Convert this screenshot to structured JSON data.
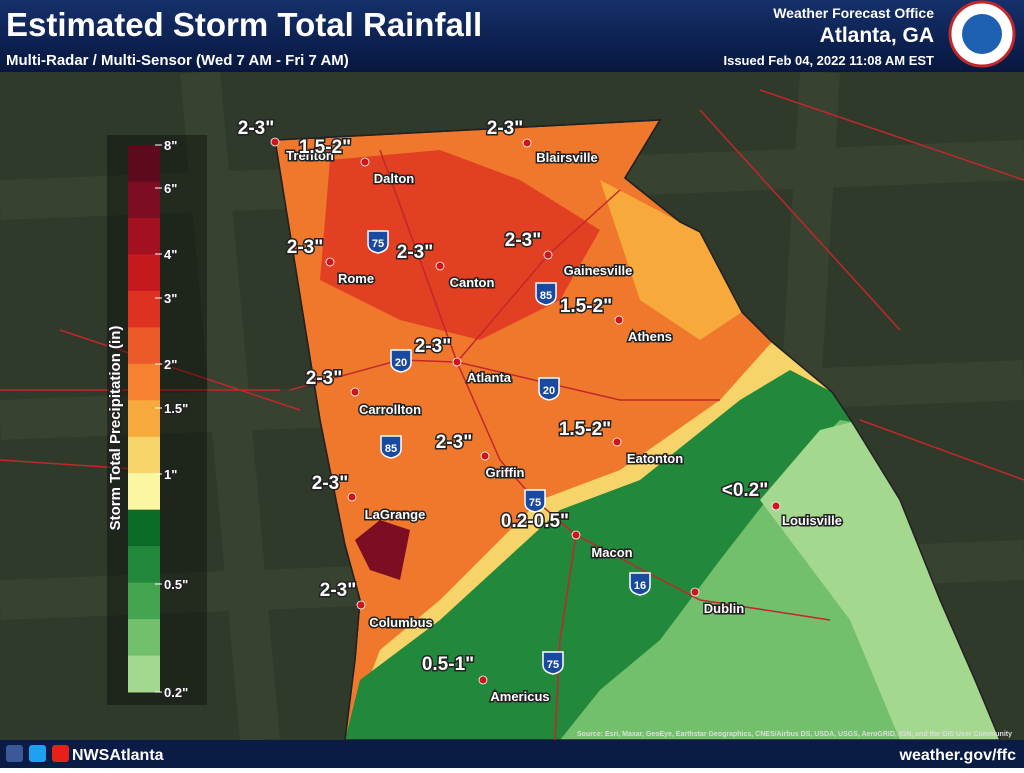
{
  "header": {
    "title": "Estimated Storm Total Rainfall",
    "subtitle": "Multi-Radar / Multi-Sensor (Wed 7 AM - Fri 7 AM)",
    "office": "Weather Forecast Office",
    "office_location": "Atlanta, GA",
    "issued": "Issued Feb 04, 2022 11:08 AM EST"
  },
  "legend": {
    "title": "Storm Total Precipitation (in)",
    "labels": [
      "8\"",
      "6\"",
      "4\"",
      "3\"",
      "2\"",
      "1.5\"",
      "1\"",
      "0.5\"",
      "0.2\""
    ],
    "colors": [
      "#5c0a1c",
      "#7c0d22",
      "#a3101f",
      "#c6191d",
      "#dd3222",
      "#ec5a2a",
      "#f4822f",
      "#f8a93c",
      "#f7d46a",
      "#fbf6a2",
      "#0b6a26",
      "#22883b",
      "#45a44f",
      "#72bf6c",
      "#a3d88e"
    ]
  },
  "cities": [
    "Trenton",
    "Dalton",
    "Blairsville",
    "Rome",
    "Canton",
    "Gainesville",
    "Athens",
    "Atlanta",
    "Carrollton",
    "Eatonton",
    "Griffin",
    "LaGrange",
    "Louisville",
    "Macon",
    "Dublin",
    "Columbus",
    "Americus"
  ],
  "amounts": [
    "2-3\"",
    "1.5-2\"",
    "2-3\"",
    "2-3\"",
    "2-3\"",
    "2-3\"",
    "1.5-2\"",
    "2-3\"",
    "2-3\"",
    "1.5-2\"",
    "2-3\"",
    "2-3\"",
    "<0.2\"",
    "0.2-0.5\"",
    "2-3\"",
    "0.5-1\""
  ],
  "interstates": [
    "75",
    "85",
    "20",
    "20",
    "85",
    "75",
    "16",
    "75"
  ],
  "footer": {
    "social": "NWSAtlanta",
    "url": "weather.gov/ffc",
    "attribution": "Source: Esri, Maxar, GeoEye, Earthstar Geographics, CNES/Airbus DS, USDA, USGS, AeroGRID, IGN, and the GIS User Community"
  }
}
